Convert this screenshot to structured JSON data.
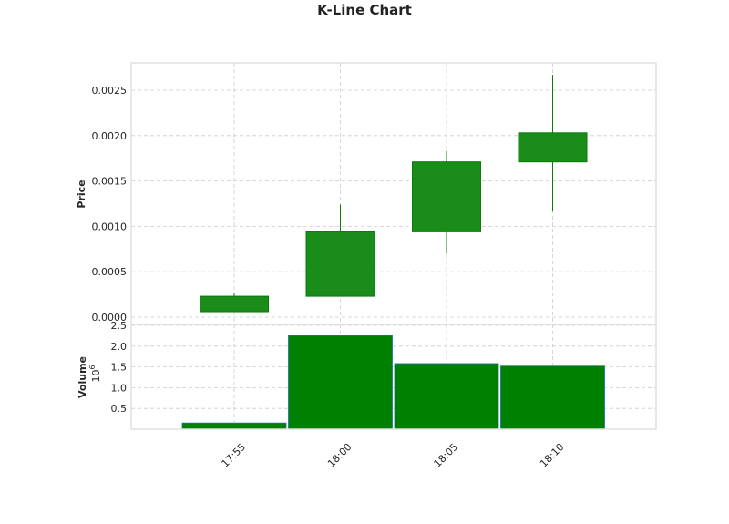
{
  "chart_data": {
    "type": "candlestick",
    "title": "K-Line Chart",
    "categories": [
      "17:55",
      "18:00",
      "18:05",
      "18:10"
    ],
    "price": {
      "ylabel": "Price",
      "ylim": [
        0,
        0.0028
      ],
      "ticks": [
        "0.0000",
        "0.0005",
        "0.0010",
        "0.0015",
        "0.0020",
        "0.0025"
      ],
      "tick_values": [
        0,
        0.0005,
        0.001,
        0.0015,
        0.002,
        0.0025
      ],
      "candles": [
        {
          "open": 6e-05,
          "close": 0.00023,
          "high": 0.00027,
          "low": 6e-05
        },
        {
          "open": 0.00023,
          "close": 0.00094,
          "high": 0.00124,
          "low": 0.00023
        },
        {
          "open": 0.00094,
          "close": 0.00171,
          "high": 0.00183,
          "low": 0.0007
        },
        {
          "open": 0.00171,
          "close": 0.00203,
          "high": 0.00267,
          "low": 0.00117
        }
      ]
    },
    "volume": {
      "ylabel": "Volume",
      "exponent_label": "10",
      "exponent_power": "6",
      "ylim": [
        0,
        2.5
      ],
      "ticks": [
        "0.5",
        "1.0",
        "1.5",
        "2.0",
        "2.5"
      ],
      "tick_values": [
        0.5,
        1.0,
        1.5,
        2.0,
        2.5
      ],
      "values": [
        0.15,
        2.25,
        1.58,
        1.52
      ]
    },
    "grid": true,
    "colors": {
      "up_fill": "#1a8c1a",
      "up_edge": "#0a7a0a",
      "volume_fill": "#008000",
      "volume_edge": "#1f6fb0"
    }
  }
}
